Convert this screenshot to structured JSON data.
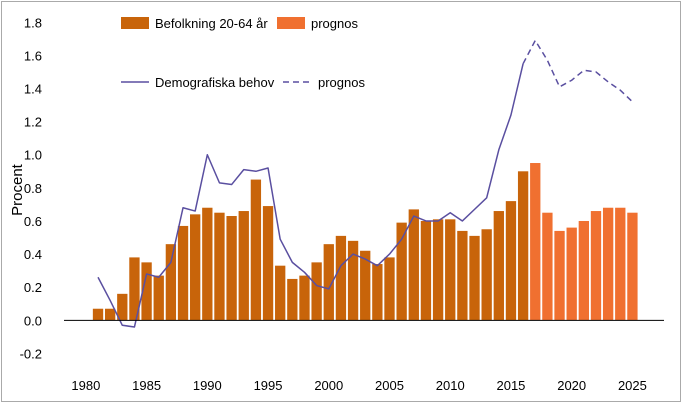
{
  "colors": {
    "bar_history": "#C8640A",
    "bar_forecast": "#F07030",
    "line": "#5A4FA0",
    "zero_line": "#000000",
    "frame": "#aaaaaa"
  },
  "chart_data": {
    "type": "bar",
    "ylabel": "Procent",
    "xlabel": "",
    "ylim": [
      -0.3,
      1.85
    ],
    "xlim": [
      1978.2,
      2027.6
    ],
    "y_ticks": [
      -0.2,
      0.0,
      0.2,
      0.4,
      0.6,
      0.8,
      1.0,
      1.2,
      1.4,
      1.6,
      1.8
    ],
    "y_tick_labels": [
      "-0.2",
      "0.0",
      "0.2",
      "0.4",
      "0.6",
      "0.8",
      "1.0",
      "1.2",
      "1.4",
      "1.6",
      "1.8"
    ],
    "x_ticks": [
      1980,
      1985,
      1990,
      1995,
      2000,
      2005,
      2010,
      2015,
      2020,
      2025
    ],
    "x_tick_labels": [
      "1980",
      "1985",
      "1990",
      "1995",
      "2000",
      "2005",
      "2010",
      "2015",
      "2020",
      "2025"
    ],
    "grid": false,
    "legend": [
      {
        "label": "Befolkning 20-64 år",
        "kind": "bar",
        "color_key": "bar_history"
      },
      {
        "label": "prognos",
        "kind": "bar",
        "color_key": "bar_forecast"
      },
      {
        "label": "Demografiska behov",
        "kind": "line",
        "color_key": "line"
      },
      {
        "label": "prognos",
        "kind": "dashed",
        "color_key": "line"
      }
    ],
    "bar_series": {
      "name": "Befolkning 20-64 år",
      "x": [
        1981,
        1982,
        1983,
        1984,
        1985,
        1986,
        1987,
        1988,
        1989,
        1990,
        1991,
        1992,
        1993,
        1994,
        1995,
        1996,
        1997,
        1998,
        1999,
        2000,
        2001,
        2002,
        2003,
        2004,
        2005,
        2006,
        2007,
        2008,
        2009,
        2010,
        2011,
        2012,
        2013,
        2014,
        2015,
        2016
      ],
      "values": [
        0.07,
        0.07,
        0.16,
        0.38,
        0.35,
        0.27,
        0.46,
        0.57,
        0.64,
        0.68,
        0.65,
        0.63,
        0.66,
        0.85,
        0.69,
        0.33,
        0.25,
        0.27,
        0.35,
        0.46,
        0.51,
        0.48,
        0.42,
        0.34,
        0.38,
        0.59,
        0.67,
        0.6,
        0.61,
        0.61,
        0.54,
        0.51,
        0.55,
        0.66,
        0.72,
        0.9
      ]
    },
    "bar_forecast": {
      "name": "prognos",
      "x": [
        2017,
        2018,
        2019,
        2020,
        2021,
        2022,
        2023,
        2024,
        2025
      ],
      "values": [
        0.95,
        0.65,
        0.54,
        0.56,
        0.6,
        0.66,
        0.68,
        0.68,
        0.65
      ]
    },
    "line_series": {
      "name": "Demografiska behov",
      "x": [
        1981,
        1982,
        1983,
        1984,
        1985,
        1986,
        1987,
        1988,
        1989,
        1990,
        1991,
        1992,
        1993,
        1994,
        1995,
        1996,
        1997,
        1998,
        1999,
        2000,
        2001,
        2002,
        2003,
        2004,
        2005,
        2006,
        2007,
        2008,
        2009,
        2010,
        2011,
        2012,
        2013,
        2014,
        2015,
        2016
      ],
      "values": [
        0.26,
        0.12,
        -0.03,
        -0.04,
        0.28,
        0.26,
        0.35,
        0.68,
        0.66,
        1.0,
        0.83,
        0.82,
        0.91,
        0.9,
        0.92,
        0.49,
        0.35,
        0.29,
        0.21,
        0.19,
        0.33,
        0.4,
        0.37,
        0.33,
        0.4,
        0.49,
        0.63,
        0.6,
        0.6,
        0.65,
        0.6,
        0.67,
        0.74,
        1.03,
        1.24,
        1.55
      ]
    },
    "line_forecast": {
      "name": "prognos",
      "x": [
        2016,
        2017,
        2018,
        2019,
        2020,
        2021,
        2022,
        2023,
        2024,
        2025
      ],
      "values": [
        1.55,
        1.69,
        1.57,
        1.41,
        1.45,
        1.51,
        1.5,
        1.44,
        1.39,
        1.32
      ]
    }
  }
}
